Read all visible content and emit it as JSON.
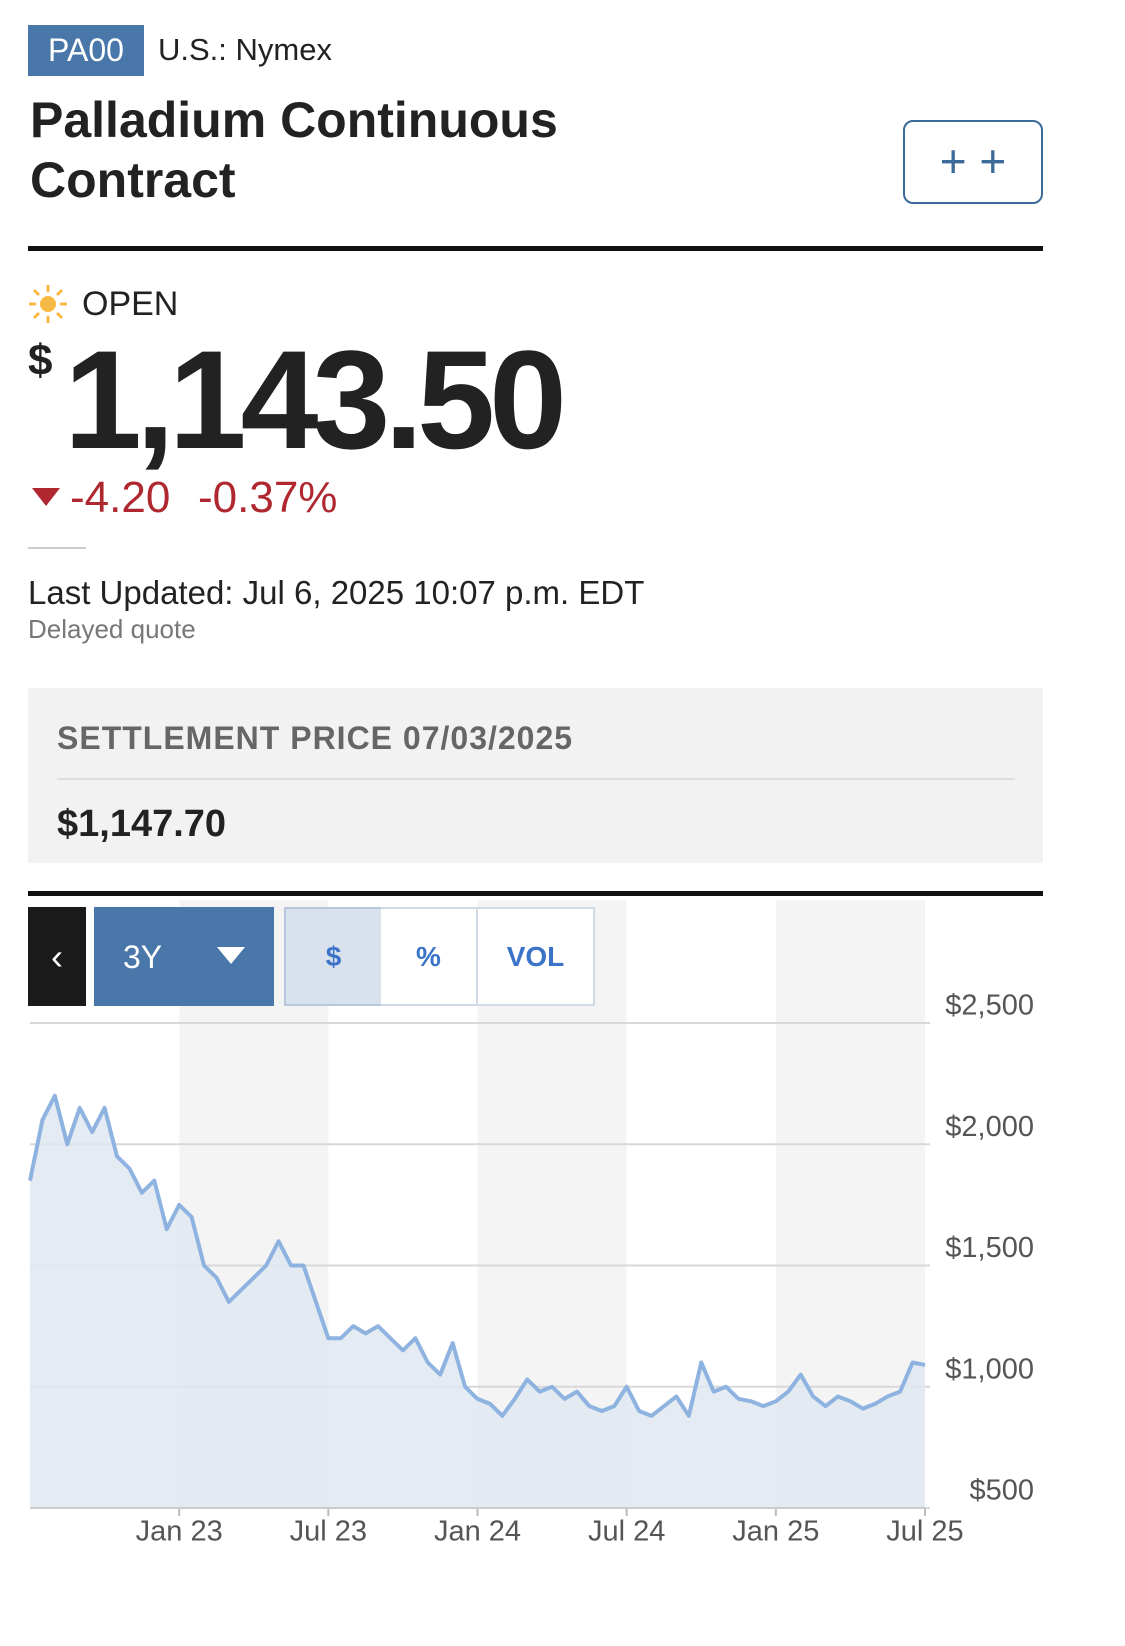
{
  "header": {
    "symbol": "PA00",
    "exchange": "U.S.: Nymex",
    "title": "Palladium Continuous Contract"
  },
  "quote": {
    "status": "OPEN",
    "currency": "$",
    "price": "1,143.50",
    "change": "-4.20",
    "change_percent": "-0.37%",
    "last_updated": "Last Updated: Jul 6, 2025 10:07 p.m. EDT",
    "delay_note": "Delayed quote"
  },
  "settlement": {
    "label": "SETTLEMENT PRICE 07/03/2025",
    "value": "$1,147.70"
  },
  "controls": {
    "range": "3Y",
    "tabs": [
      "$",
      "%",
      "VOL"
    ]
  },
  "chart_data": {
    "type": "line",
    "color": "#8fb3e0",
    "fill": "#dfe7f0",
    "grid": true,
    "xlim": [
      0,
      72
    ],
    "xticks": [
      {
        "value": 12,
        "label": "Jan 23"
      },
      {
        "value": 24,
        "label": "Jul 23"
      },
      {
        "value": 36,
        "label": "Jan 24"
      },
      {
        "value": 48,
        "label": "Jul 24"
      },
      {
        "value": 60,
        "label": "Jan 25"
      },
      {
        "value": 72,
        "label": "Jul 25"
      }
    ],
    "ylim": [
      500,
      2500
    ],
    "yticks": [
      {
        "value": 2500,
        "label": "$2,500"
      },
      {
        "value": 2000,
        "label": "$2,000"
      },
      {
        "value": 1500,
        "label": "$1,500"
      },
      {
        "value": 1000,
        "label": "$1,000"
      },
      {
        "value": 500,
        "label": "$500"
      }
    ],
    "values": [
      1850,
      2100,
      2200,
      2000,
      2150,
      2050,
      2150,
      1950,
      1900,
      1800,
      1850,
      1650,
      1750,
      1700,
      1500,
      1450,
      1350,
      1400,
      1450,
      1500,
      1600,
      1500,
      1500,
      1350,
      1200,
      1200,
      1250,
      1220,
      1250,
      1200,
      1150,
      1200,
      1100,
      1050,
      1180,
      1000,
      950,
      930,
      880,
      950,
      1030,
      980,
      1000,
      950,
      980,
      920,
      900,
      920,
      1000,
      900,
      880,
      920,
      960,
      880,
      1100,
      980,
      1000,
      950,
      940,
      920,
      940,
      980,
      1050,
      960,
      920,
      960,
      940,
      910,
      930,
      960,
      980,
      1100,
      1090
    ]
  }
}
